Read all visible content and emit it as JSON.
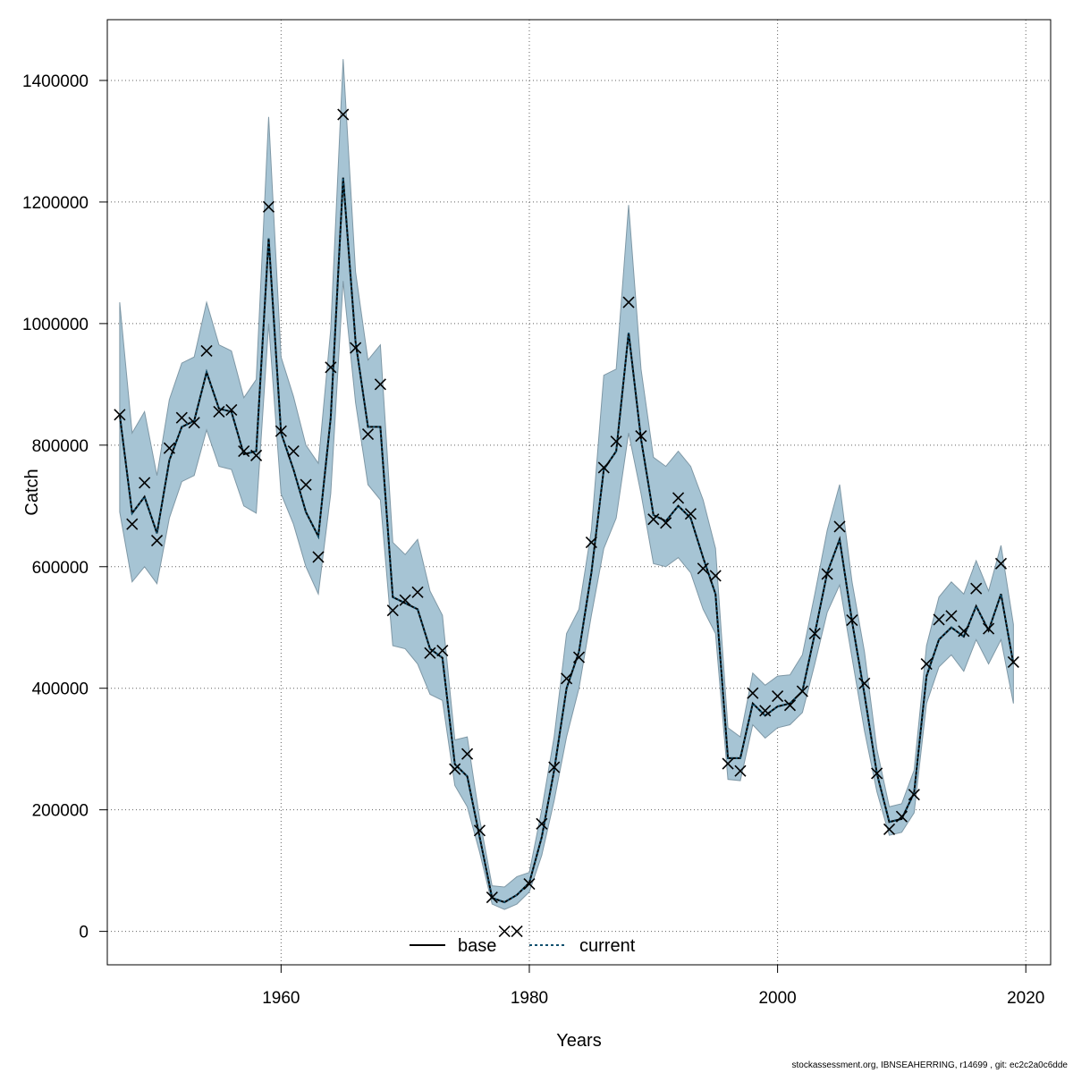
{
  "chart_data": {
    "type": "line",
    "xlabel": "Years",
    "ylabel": "Catch",
    "xlim": [
      1946,
      2022
    ],
    "ylim": [
      -55000,
      1500000
    ],
    "x_ticks": [
      1960,
      1980,
      2000,
      2020
    ],
    "y_ticks": [
      0,
      200000,
      400000,
      600000,
      800000,
      1000000,
      1200000,
      1400000
    ],
    "x_tick_labels": [
      "1960",
      "1980",
      "2000",
      "2020"
    ],
    "y_tick_labels": [
      "0",
      "200000",
      "400000",
      "600000",
      "800000",
      "1000000",
      "1200000",
      "1400000"
    ],
    "grid": true,
    "legend_position": "bottom-center",
    "colors": {
      "band": "#a6c4d4",
      "band_edge": "#7f98a6",
      "current_line": "#10506e",
      "base_line": "#000000",
      "grid": "#606060"
    },
    "legend": [
      {
        "label": "base",
        "style": "solid"
      },
      {
        "label": "current",
        "style": "dotted"
      }
    ],
    "confidence_band": {
      "x": [
        1947,
        1948,
        1949,
        1950,
        1951,
        1952,
        1953,
        1954,
        1955,
        1956,
        1957,
        1958,
        1959,
        1960,
        1961,
        1962,
        1963,
        1964,
        1965,
        1966,
        1967,
        1968,
        1969,
        1970,
        1971,
        1972,
        1973,
        1974,
        1975,
        1976,
        1977,
        1978,
        1979,
        1980,
        1981,
        1982,
        1983,
        1984,
        1985,
        1986,
        1987,
        1988,
        1989,
        1990,
        1991,
        1992,
        1993,
        1994,
        1995,
        1996,
        1997,
        1998,
        1999,
        2000,
        2001,
        2002,
        2003,
        2004,
        2005,
        2006,
        2007,
        2008,
        2009,
        2010,
        2011,
        2012,
        2013,
        2014,
        2015,
        2016,
        2017,
        2018,
        2019
      ],
      "lower": [
        690000,
        575000,
        600000,
        572000,
        680000,
        740000,
        750000,
        825000,
        765000,
        760000,
        700000,
        688000,
        1000000,
        720000,
        670000,
        600000,
        555000,
        720000,
        1070000,
        870000,
        735000,
        710000,
        470000,
        465000,
        440000,
        390000,
        380000,
        240000,
        205000,
        130000,
        45000,
        36000,
        45000,
        65000,
        125000,
        215000,
        320000,
        400000,
        520000,
        630000,
        680000,
        820000,
        720000,
        605000,
        600000,
        615000,
        590000,
        530000,
        490000,
        250000,
        248000,
        340000,
        318000,
        335000,
        340000,
        360000,
        440000,
        525000,
        570000,
        450000,
        330000,
        230000,
        158000,
        163000,
        195000,
        375000,
        435000,
        455000,
        428000,
        480000,
        440000,
        480000,
        375000
      ],
      "upper": [
        1035000,
        820000,
        855000,
        750000,
        875000,
        935000,
        945000,
        1035000,
        965000,
        955000,
        878000,
        908000,
        1340000,
        945000,
        880000,
        800000,
        770000,
        990000,
        1435000,
        1085000,
        940000,
        965000,
        640000,
        620000,
        645000,
        560000,
        520000,
        315000,
        320000,
        185000,
        75000,
        73000,
        90000,
        97000,
        200000,
        320000,
        490000,
        530000,
        660000,
        915000,
        925000,
        1195000,
        925000,
        780000,
        765000,
        790000,
        765000,
        710000,
        630000,
        335000,
        320000,
        425000,
        405000,
        420000,
        422000,
        455000,
        555000,
        660000,
        735000,
        575000,
        460000,
        300000,
        205000,
        210000,
        265000,
        470000,
        550000,
        575000,
        555000,
        610000,
        560000,
        635000,
        505000
      ]
    },
    "series": [
      {
        "name": "base",
        "style": "solid",
        "x": [
          1947,
          1948,
          1949,
          1950,
          1951,
          1952,
          1953,
          1954,
          1955,
          1956,
          1957,
          1958,
          1959,
          1960,
          1961,
          1962,
          1963,
          1964,
          1965,
          1966,
          1967,
          1968,
          1969,
          1970,
          1971,
          1972,
          1973,
          1974,
          1975,
          1976,
          1977,
          1978,
          1979,
          1980,
          1981,
          1982,
          1983,
          1984,
          1985,
          1986,
          1987,
          1988,
          1989,
          1990,
          1991,
          1992,
          1993,
          1994,
          1995,
          1996,
          1997,
          1998,
          1999,
          2000,
          2001,
          2002,
          2003,
          2004,
          2005,
          2006,
          2007,
          2008,
          2009,
          2010,
          2011,
          2012,
          2013,
          2014,
          2015,
          2016,
          2017,
          2018,
          2019
        ],
        "values": [
          850000,
          688000,
          715000,
          655000,
          775000,
          830000,
          840000,
          920000,
          860000,
          855000,
          785000,
          790000,
          1140000,
          820000,
          760000,
          690000,
          650000,
          845000,
          1240000,
          970000,
          830000,
          830000,
          550000,
          540000,
          530000,
          465000,
          450000,
          275000,
          255000,
          155000,
          55000,
          48000,
          60000,
          80000,
          155000,
          265000,
          400000,
          460000,
          590000,
          760000,
          790000,
          985000,
          810000,
          685000,
          675000,
          700000,
          680000,
          615000,
          555000,
          285000,
          285000,
          375000,
          355000,
          370000,
          375000,
          395000,
          490000,
          590000,
          645000,
          510000,
          390000,
          260000,
          180000,
          185000,
          228000,
          420000,
          480000,
          500000,
          485000,
          535000,
          495000,
          555000,
          440000
        ]
      },
      {
        "name": "current",
        "style": "dotted",
        "x": [
          1947,
          1948,
          1949,
          1950,
          1951,
          1952,
          1953,
          1954,
          1955,
          1956,
          1957,
          1958,
          1959,
          1960,
          1961,
          1962,
          1963,
          1964,
          1965,
          1966,
          1967,
          1968,
          1969,
          1970,
          1971,
          1972,
          1973,
          1974,
          1975,
          1976,
          1977,
          1978,
          1979,
          1980,
          1981,
          1982,
          1983,
          1984,
          1985,
          1986,
          1987,
          1988,
          1989,
          1990,
          1991,
          1992,
          1993,
          1994,
          1995,
          1996,
          1997,
          1998,
          1999,
          2000,
          2001,
          2002,
          2003,
          2004,
          2005,
          2006,
          2007,
          2008,
          2009,
          2010,
          2011,
          2012,
          2013,
          2014,
          2015,
          2016,
          2017,
          2018,
          2019
        ],
        "values": [
          850000,
          688000,
          715000,
          655000,
          775000,
          830000,
          840000,
          920000,
          860000,
          855000,
          785000,
          790000,
          1140000,
          820000,
          760000,
          690000,
          650000,
          845000,
          1240000,
          970000,
          830000,
          830000,
          550000,
          540000,
          530000,
          465000,
          450000,
          275000,
          255000,
          155000,
          55000,
          48000,
          60000,
          80000,
          155000,
          265000,
          400000,
          460000,
          590000,
          760000,
          790000,
          985000,
          810000,
          685000,
          675000,
          700000,
          680000,
          615000,
          555000,
          285000,
          285000,
          375000,
          355000,
          370000,
          375000,
          395000,
          490000,
          590000,
          645000,
          510000,
          390000,
          260000,
          180000,
          185000,
          228000,
          420000,
          480000,
          500000,
          485000,
          535000,
          495000,
          555000,
          440000
        ]
      }
    ],
    "observations": {
      "marker": "x",
      "x": [
        1947,
        1948,
        1949,
        1950,
        1951,
        1952,
        1953,
        1954,
        1955,
        1956,
        1957,
        1958,
        1959,
        1960,
        1961,
        1962,
        1963,
        1964,
        1965,
        1966,
        1967,
        1968,
        1969,
        1970,
        1971,
        1972,
        1973,
        1974,
        1975,
        1976,
        1977,
        1978,
        1979,
        1980,
        1981,
        1982,
        1983,
        1984,
        1985,
        1986,
        1987,
        1988,
        1989,
        1990,
        1991,
        1992,
        1993,
        1994,
        1995,
        1996,
        1997,
        1998,
        1999,
        2000,
        2001,
        2002,
        2003,
        2004,
        2005,
        2006,
        2007,
        2008,
        2009,
        2010,
        2011,
        2012,
        2013,
        2014,
        2015,
        2016,
        2017,
        2018,
        2019
      ],
      "values": [
        850000,
        670000,
        738000,
        643000,
        795000,
        845000,
        837000,
        955000,
        855000,
        858000,
        790000,
        783000,
        1192000,
        823000,
        790000,
        735000,
        616000,
        928000,
        1344000,
        960000,
        818000,
        900000,
        528000,
        545000,
        558000,
        458000,
        462000,
        267000,
        292000,
        166000,
        56000,
        0,
        0,
        78000,
        177000,
        270000,
        416000,
        451000,
        640000,
        763000,
        806000,
        1035000,
        815000,
        678000,
        672000,
        713000,
        687000,
        597000,
        585000,
        276000,
        264000,
        392000,
        363000,
        387000,
        372000,
        395000,
        490000,
        588000,
        666000,
        512000,
        408000,
        260000,
        168000,
        189000,
        225000,
        440000,
        513000,
        519000,
        494000,
        564000,
        498000,
        605000,
        443000
      ]
    }
  },
  "footer": "stockassessment.org, IBNSEAHERRING, r14699 , git: ec2c2a0c6dde"
}
